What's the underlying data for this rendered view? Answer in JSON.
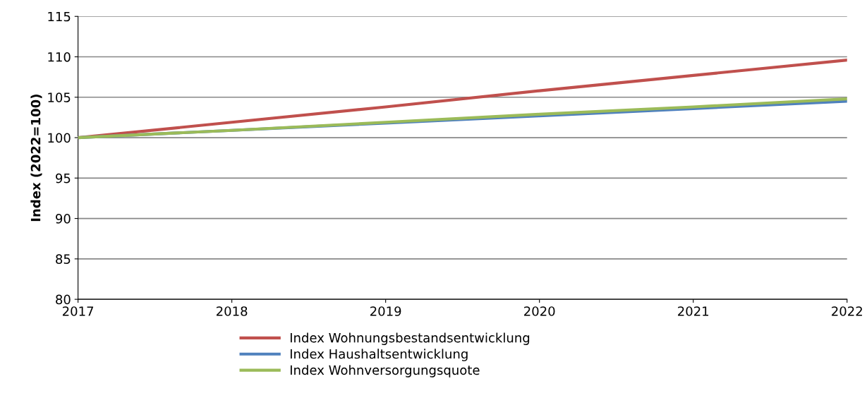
{
  "chart_data": {
    "type": "line",
    "ylabel": "Index (2022=100)",
    "x": [
      2017,
      2018,
      2019,
      2020,
      2021,
      2022
    ],
    "series": [
      {
        "name": "Index Wohnungsbestandsentwicklung",
        "color": "#c0504d",
        "values": [
          100,
          101.9,
          103.8,
          105.8,
          107.7,
          109.6
        ]
      },
      {
        "name": "Index Haushaltsentwicklung",
        "color": "#4f81bd",
        "values": [
          100,
          100.9,
          101.8,
          102.7,
          103.6,
          104.5
        ]
      },
      {
        "name": "Index Wohnversorgungsquote",
        "color": "#9bbb59",
        "values": [
          100,
          100.9,
          101.9,
          102.9,
          103.8,
          104.8
        ]
      }
    ],
    "xlim": [
      2017,
      2022
    ],
    "xticks": [
      2017,
      2018,
      2019,
      2020,
      2021,
      2022
    ],
    "ylim": [
      80,
      115
    ],
    "yticks": [
      80,
      85,
      90,
      95,
      100,
      105,
      110,
      115
    ],
    "grid": "y",
    "legend": "bottom",
    "marker": "none",
    "line_style": "solid"
  }
}
